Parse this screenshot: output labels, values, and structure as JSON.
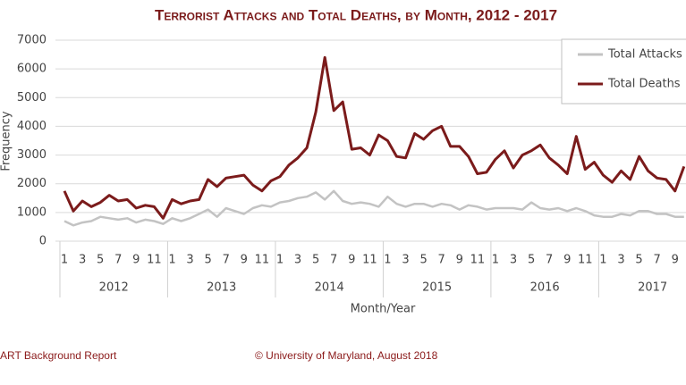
{
  "chart_data": {
    "type": "line",
    "title": "Terrorist Attacks and Total Deaths, by Month, 2012 - 2017",
    "y_label": "Frequency",
    "x_label": "Month/Year",
    "categories": [
      "1",
      null,
      "3",
      null,
      "5",
      null,
      "7",
      null,
      "9",
      null,
      "11",
      null,
      "1",
      null,
      "3",
      null,
      "5",
      null,
      "7",
      null,
      "9",
      null,
      "11",
      null,
      "1",
      null,
      "3",
      null,
      "5",
      null,
      "7",
      null,
      "9",
      null,
      "11",
      null,
      "1",
      null,
      "3",
      null,
      "5",
      null,
      "7",
      null,
      "9",
      null,
      "11",
      null,
      "1",
      null,
      "3",
      null,
      "5",
      null,
      "7",
      null,
      "9",
      null,
      "11",
      null,
      "1",
      null,
      "3",
      null,
      "5",
      null,
      "7",
      null,
      "9",
      null
    ],
    "x_groups": [
      "2012",
      "2013",
      "2014",
      "2015",
      "2016",
      "2017"
    ],
    "series": [
      {
        "name": "Total Attacks",
        "color": "#c3c3c3",
        "values": [
          700,
          550,
          650,
          700,
          850,
          800,
          750,
          800,
          650,
          750,
          700,
          600,
          800,
          700,
          800,
          950,
          1100,
          850,
          1150,
          1050,
          950,
          1150,
          1250,
          1200,
          1350,
          1400,
          1500,
          1550,
          1700,
          1450,
          1750,
          1400,
          1300,
          1350,
          1300,
          1200,
          1550,
          1300,
          1200,
          1300,
          1300,
          1200,
          1300,
          1250,
          1100,
          1250,
          1200,
          1100,
          1150,
          1150,
          1150,
          1100,
          1350,
          1150,
          1100,
          1150,
          1050,
          1150,
          1050,
          900,
          850,
          850,
          950,
          900,
          1050,
          1050,
          950,
          950,
          850,
          850
        ]
      },
      {
        "name": "Total Deaths",
        "color": "#7b1b1b",
        "values": [
          1750,
          1050,
          1400,
          1200,
          1350,
          1600,
          1400,
          1450,
          1150,
          1250,
          1200,
          800,
          1450,
          1300,
          1400,
          1450,
          2150,
          1900,
          2200,
          2250,
          2300,
          1950,
          1750,
          2100,
          2250,
          2650,
          2900,
          3250,
          4500,
          6400,
          4550,
          4850,
          3200,
          3250,
          3000,
          3700,
          3500,
          2950,
          2900,
          3750,
          3550,
          3850,
          4000,
          3300,
          3300,
          2950,
          2350,
          2400,
          2850,
          3150,
          2550,
          3000,
          3150,
          3350,
          2900,
          2650,
          2350,
          3650,
          2500,
          2750,
          2300,
          2050,
          2450,
          2150,
          2950,
          2450,
          2200,
          2150,
          1750,
          2600
        ]
      }
    ],
    "ylim": [
      0,
      7000
    ],
    "yticks": [
      0,
      1000,
      2000,
      3000,
      4000,
      5000,
      6000,
      7000
    ],
    "grid": true,
    "legend": "top-right",
    "footer": [
      "ART Background Report",
      "© University of Maryland, August 2018"
    ]
  }
}
